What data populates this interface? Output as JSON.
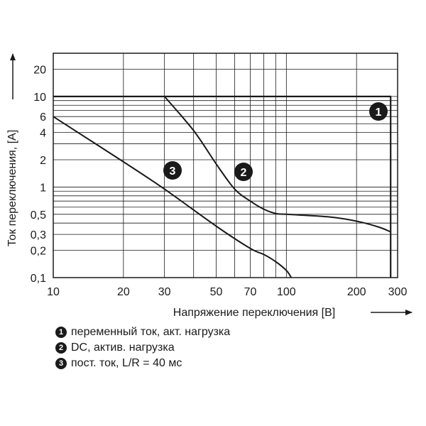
{
  "chart_data": {
    "type": "line",
    "xlabel": "Напряжение переключения [В]",
    "ylabel": "Ток переключения, [A]",
    "xscale": "log",
    "yscale": "log",
    "xlim": [
      10,
      300
    ],
    "ylim": [
      0.1,
      30
    ],
    "x_ticks": [
      "10",
      "20",
      "30",
      "50",
      "70",
      "100",
      "200",
      "300"
    ],
    "y_ticks": [
      "0,1",
      "0,2",
      "0,3",
      "0,5",
      "1",
      "2",
      "4",
      "6",
      "10",
      "20"
    ],
    "grid": true,
    "series": [
      {
        "marker": "1",
        "x": [
          10,
          280,
          280
        ],
        "y": [
          10,
          10,
          0.1
        ]
      },
      {
        "marker": "2",
        "x": [
          30,
          40,
          50,
          60,
          70,
          80,
          90,
          100,
          150,
          200,
          250,
          280
        ],
        "y": [
          10,
          4.2,
          1.8,
          0.95,
          0.7,
          0.57,
          0.51,
          0.5,
          0.47,
          0.42,
          0.36,
          0.32
        ]
      },
      {
        "marker": "3",
        "x": [
          10,
          20,
          30,
          50,
          70,
          80,
          90,
          100,
          105
        ],
        "y": [
          6,
          1.9,
          0.95,
          0.37,
          0.21,
          0.18,
          0.15,
          0.12,
          0.1
        ]
      }
    ],
    "legend": [
      {
        "marker": "1",
        "label": "переменный ток, акт. нагрузка"
      },
      {
        "marker": "2",
        "label": "DC, актив. нагрузка"
      },
      {
        "marker": "3",
        "label": "пост. ток, L/R = 40 мс"
      }
    ]
  }
}
